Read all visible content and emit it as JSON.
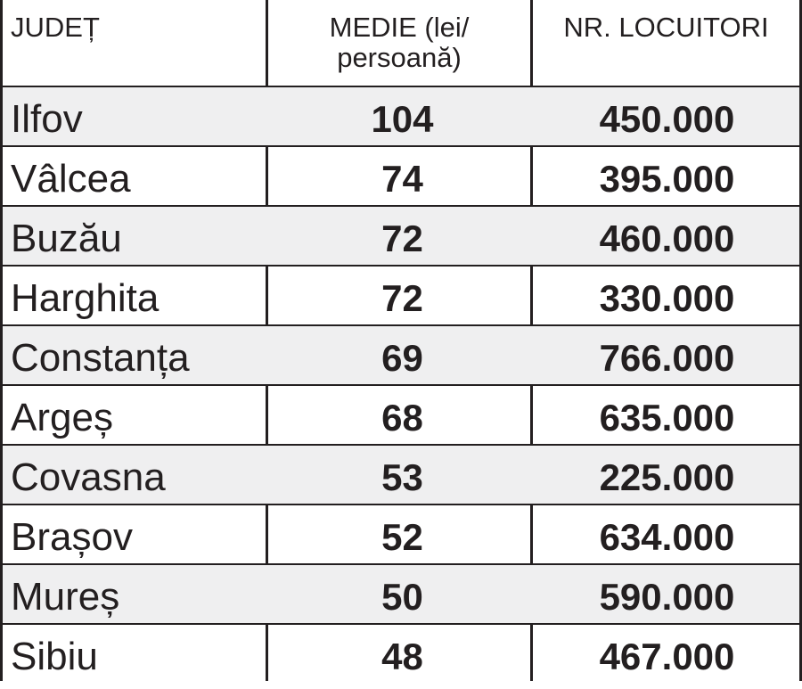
{
  "headers": {
    "county": "JUDEȚ",
    "average_line1": "MEDIE (lei/",
    "average_line2": "persoană)",
    "inhabitants": "NR. LOCUITORI"
  },
  "rows": [
    {
      "county": "Ilfov",
      "average": "104",
      "inhabitants": "450.000"
    },
    {
      "county": "Vâlcea",
      "average": "74",
      "inhabitants": "395.000"
    },
    {
      "county": "Buzău",
      "average": "72",
      "inhabitants": "460.000"
    },
    {
      "county": "Harghita",
      "average": "72",
      "inhabitants": "330.000"
    },
    {
      "county": "Constanța",
      "average": "69",
      "inhabitants": "766.000"
    },
    {
      "county": "Argeș",
      "average": "68",
      "inhabitants": "635.000"
    },
    {
      "county": "Covasna",
      "average": "53",
      "inhabitants": "225.000"
    },
    {
      "county": "Brașov",
      "average": "52",
      "inhabitants": "634.000"
    },
    {
      "county": "Mureș",
      "average": "50",
      "inhabitants": "590.000"
    },
    {
      "county": "Sibiu",
      "average": "48",
      "inhabitants": "467.000"
    }
  ],
  "colors": {
    "text": "#231f20",
    "row_shade": "#efeff0",
    "background": "#ffffff"
  }
}
